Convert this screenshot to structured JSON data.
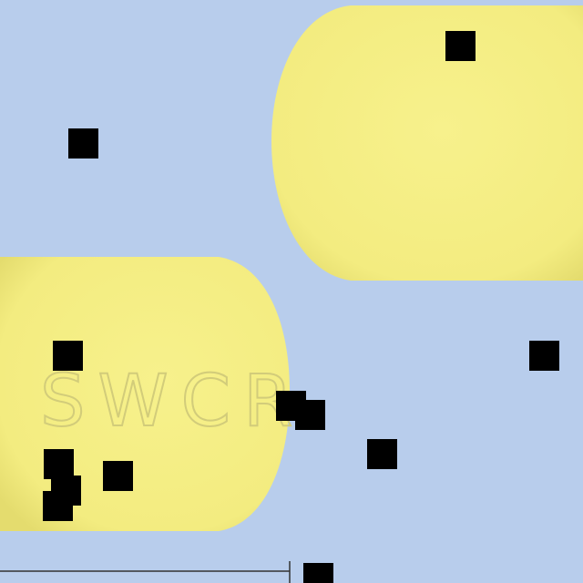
{
  "imprint": "SWCR"
}
